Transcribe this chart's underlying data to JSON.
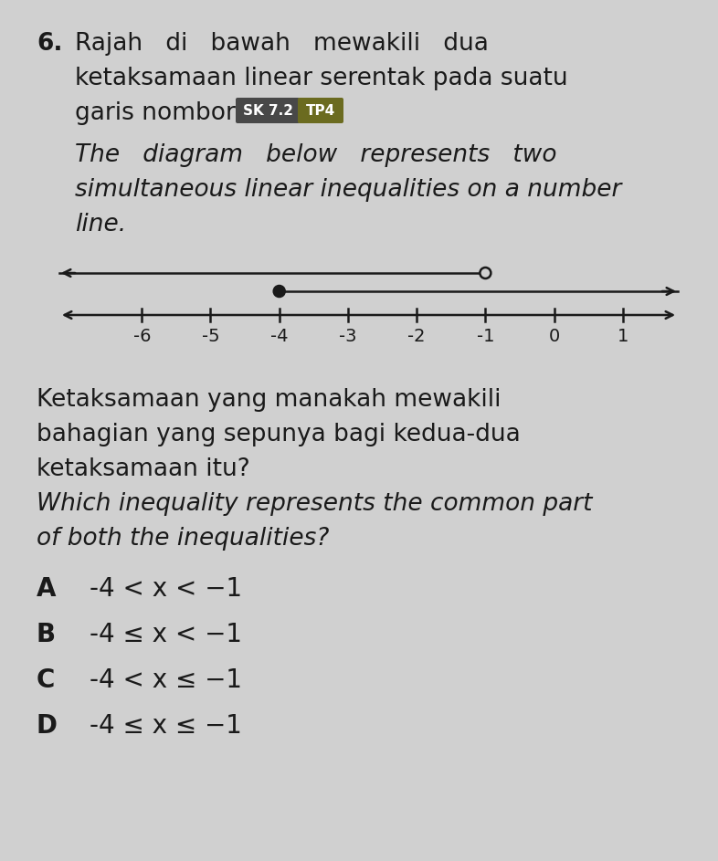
{
  "bg_color": "#d0d0d0",
  "text_color": "#1a1a1a",
  "line_color": "#1a1a1a",
  "fig_width": 7.86,
  "fig_height": 9.43,
  "q_number": "6.",
  "malay_line1": "Rajah   di   bawah   mewakili   dua",
  "malay_line2": "ketaksamaan linear serentak pada suatu",
  "malay_line3": "garis nombor.",
  "badge_sk": "SK 7.2",
  "badge_tp": "TP4",
  "badge_sk_color": "#484848",
  "badge_tp_color": "#6b6b20",
  "eng_line1": "The   diagram   below   represents   two",
  "eng_line2": "simultaneous linear inequalities on a number",
  "eng_line3": "line.",
  "nl_ticks": [
    -6,
    -5,
    -4,
    -3,
    -2,
    -1,
    0,
    1
  ],
  "nl_data_min": -7.2,
  "nl_data_max": 1.8,
  "line1_open_at": -1,
  "line2_closed_at": -4,
  "q2_malay_line1": "Ketaksamaan yang manakah mewakili",
  "q2_malay_line2": "bahagian yang sepunya bagi kedua-dua",
  "q2_malay_line3": "ketaksamaan itu?",
  "q2_eng_line1": "Which inequality represents the common part",
  "q2_eng_line2": "of both the inequalities?",
  "opt_labels": [
    "A",
    "B",
    "C",
    "D"
  ],
  "opt_A": "-4 < x < −1",
  "opt_B": "-4 ≤ x < −1",
  "opt_C": "-4 < x ≤ −1",
  "opt_D": "-4 ≤ x ≤ −1",
  "fs_body": 18,
  "fs_option": 20,
  "fs_tick": 14
}
